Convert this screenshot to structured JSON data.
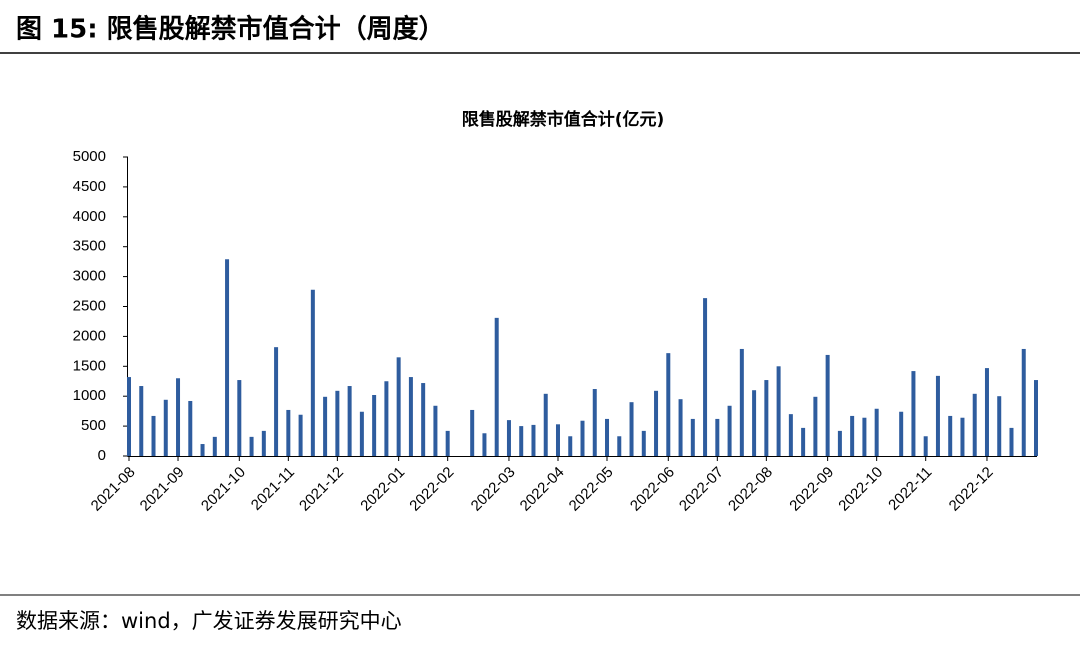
{
  "figure_title": "图 15: 限售股解禁市值合计（周度）",
  "source": "数据来源：wind，广发证券发展研究中心",
  "chart_data": {
    "type": "bar",
    "title": "限售股解禁市值合计(亿元)",
    "color": "#2e5c9e",
    "categories": [
      "2021-08",
      null,
      null,
      null,
      "2021-09",
      null,
      null,
      null,
      null,
      "2021-10",
      null,
      null,
      null,
      "2021-11",
      null,
      null,
      null,
      "2021-12",
      null,
      null,
      null,
      null,
      "2022-01",
      null,
      null,
      null,
      "2022-02",
      null,
      null,
      null,
      null,
      "2022-03",
      null,
      null,
      null,
      "2022-04",
      null,
      null,
      null,
      "2022-05",
      null,
      null,
      null,
      null,
      "2022-06",
      null,
      null,
      null,
      "2022-07",
      null,
      null,
      null,
      "2022-08",
      null,
      null,
      null,
      null,
      "2022-09",
      null,
      null,
      null,
      "2022-10",
      null,
      null,
      null,
      "2022-11",
      null,
      null,
      null,
      null,
      "2022-12",
      null,
      null,
      null,
      null
    ],
    "values": [
      1320,
      1170,
      670,
      940,
      1300,
      920,
      200,
      320,
      3290,
      1270,
      320,
      420,
      1820,
      770,
      690,
      2780,
      990,
      1090,
      1170,
      740,
      1020,
      1250,
      1650,
      1320,
      1220,
      840,
      420,
      0,
      770,
      380,
      2310,
      600,
      500,
      520,
      1040,
      530,
      330,
      590,
      1120,
      620,
      330,
      900,
      420,
      1090,
      1720,
      950,
      620,
      2640,
      620,
      840,
      1790,
      1100,
      1270,
      1500,
      700,
      470,
      990,
      1690,
      420,
      670,
      640,
      790,
      0,
      740,
      1420,
      330,
      1340,
      670,
      640,
      1040,
      1470,
      1000,
      470,
      1790,
      1270
    ],
    "ylim": [
      0,
      5000
    ],
    "yticks": [
      0,
      500,
      1000,
      1500,
      2000,
      2500,
      3000,
      3500,
      4000,
      4500,
      5000
    ]
  }
}
